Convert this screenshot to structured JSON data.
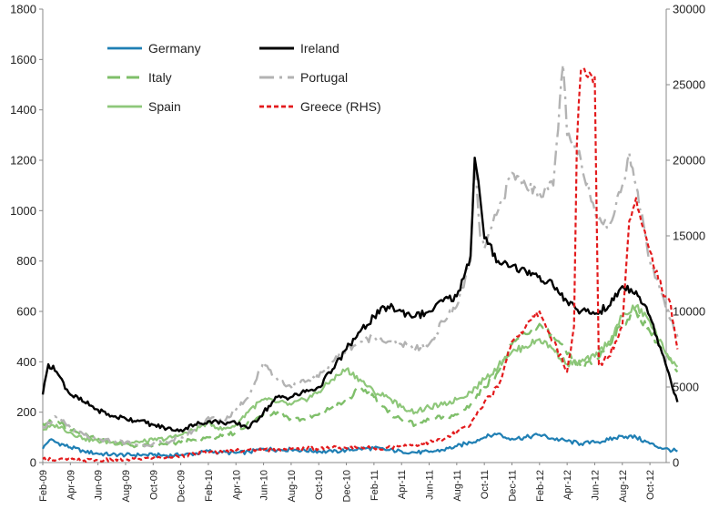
{
  "chart_data": {
    "type": "line",
    "title": "",
    "xlabel": "",
    "ylabel": "",
    "ylim": [
      0,
      1800
    ],
    "y2lim": [
      0,
      30000
    ],
    "y_ticks": [
      "0",
      "200",
      "400",
      "600",
      "800",
      "1000",
      "1200",
      "1400",
      "1600",
      "1800"
    ],
    "y2_ticks": [
      "0",
      "5000",
      "10000",
      "15000",
      "20000",
      "25000",
      "30000"
    ],
    "x_tick_labels": [
      "Feb-09",
      "Apr-09",
      "Jun-09",
      "Aug-09",
      "Oct-09",
      "Dec-09",
      "Feb-10",
      "Apr-10",
      "Jun-10",
      "Aug-10",
      "Oct-10",
      "Dec-10",
      "Feb-11",
      "Apr-11",
      "Jun-11",
      "Aug-11",
      "Oct-11",
      "Dec-11",
      "Feb-12",
      "Apr-12",
      "Jun-12",
      "Aug-12",
      "Oct-12"
    ],
    "x_range_months": [
      0,
      45
    ],
    "grid": false,
    "legend_position": "top-left",
    "series": [
      {
        "name": "Germany",
        "color": "#1f7fb4",
        "dash": "solid",
        "width": 2.2,
        "axis": "left",
        "points": [
          [
            0,
            55
          ],
          [
            0.5,
            90
          ],
          [
            1,
            80
          ],
          [
            2,
            60
          ],
          [
            3,
            45
          ],
          [
            4,
            35
          ],
          [
            5,
            32
          ],
          [
            6,
            30
          ],
          [
            7,
            30
          ],
          [
            8,
            30
          ],
          [
            9,
            28
          ],
          [
            10,
            30
          ],
          [
            11,
            35
          ],
          [
            12,
            45
          ],
          [
            13,
            40
          ],
          [
            14,
            38
          ],
          [
            15,
            42
          ],
          [
            16,
            55
          ],
          [
            17,
            50
          ],
          [
            18,
            52
          ],
          [
            19,
            48
          ],
          [
            20,
            45
          ],
          [
            21,
            42
          ],
          [
            22,
            50
          ],
          [
            23,
            55
          ],
          [
            24,
            57
          ],
          [
            25,
            50
          ],
          [
            26,
            45
          ],
          [
            27,
            40
          ],
          [
            28,
            42
          ],
          [
            29,
            50
          ],
          [
            30,
            65
          ],
          [
            31,
            80
          ],
          [
            32,
            100
          ],
          [
            33,
            115
          ],
          [
            33.5,
            100
          ],
          [
            34,
            95
          ],
          [
            35,
            100
          ],
          [
            36,
            110
          ],
          [
            37,
            95
          ],
          [
            38,
            85
          ],
          [
            39,
            75
          ],
          [
            40,
            80
          ],
          [
            41,
            90
          ],
          [
            42,
            105
          ],
          [
            43,
            100
          ],
          [
            44,
            75
          ],
          [
            45,
            55
          ],
          [
            46,
            45
          ]
        ]
      },
      {
        "name": "Italy",
        "color": "#7fbf6a",
        "dash": "long-dash",
        "width": 2.4,
        "axis": "left",
        "points": [
          [
            0,
            155
          ],
          [
            1,
            165
          ],
          [
            2,
            130
          ],
          [
            3,
            110
          ],
          [
            4,
            95
          ],
          [
            5,
            80
          ],
          [
            6,
            72
          ],
          [
            7,
            65
          ],
          [
            8,
            68
          ],
          [
            9,
            72
          ],
          [
            10,
            80
          ],
          [
            11,
            90
          ],
          [
            12,
            100
          ],
          [
            13,
            105
          ],
          [
            14,
            120
          ],
          [
            15,
            160
          ],
          [
            16,
            190
          ],
          [
            17,
            200
          ],
          [
            18,
            175
          ],
          [
            19,
            170
          ],
          [
            20,
            190
          ],
          [
            21,
            220
          ],
          [
            22,
            240
          ],
          [
            23,
            300
          ],
          [
            24,
            260
          ],
          [
            25,
            200
          ],
          [
            26,
            170
          ],
          [
            27,
            150
          ],
          [
            28,
            170
          ],
          [
            29,
            180
          ],
          [
            30,
            190
          ],
          [
            31,
            230
          ],
          [
            32,
            300
          ],
          [
            33,
            360
          ],
          [
            33.5,
            410
          ],
          [
            34,
            470
          ],
          [
            35,
            510
          ],
          [
            36,
            550
          ],
          [
            37,
            500
          ],
          [
            38,
            430
          ],
          [
            39,
            380
          ],
          [
            40,
            400
          ],
          [
            41,
            470
          ],
          [
            42,
            550
          ],
          [
            43,
            600
          ],
          [
            44,
            520
          ],
          [
            45,
            440
          ],
          [
            46,
            360
          ]
        ]
      },
      {
        "name": "Spain",
        "color": "#8ec77a",
        "dash": "solid",
        "width": 2.2,
        "axis": "left",
        "points": [
          [
            0,
            130
          ],
          [
            1,
            150
          ],
          [
            2,
            120
          ],
          [
            3,
            95
          ],
          [
            4,
            85
          ],
          [
            5,
            80
          ],
          [
            6,
            75
          ],
          [
            7,
            80
          ],
          [
            8,
            90
          ],
          [
            9,
            95
          ],
          [
            10,
            110
          ],
          [
            11,
            130
          ],
          [
            12,
            160
          ],
          [
            13,
            130
          ],
          [
            14,
            150
          ],
          [
            15,
            210
          ],
          [
            16,
            250
          ],
          [
            17,
            240
          ],
          [
            18,
            230
          ],
          [
            19,
            250
          ],
          [
            20,
            280
          ],
          [
            21,
            330
          ],
          [
            22,
            370
          ],
          [
            23,
            330
          ],
          [
            24,
            280
          ],
          [
            25,
            260
          ],
          [
            26,
            220
          ],
          [
            27,
            200
          ],
          [
            28,
            220
          ],
          [
            29,
            230
          ],
          [
            30,
            250
          ],
          [
            31,
            280
          ],
          [
            32,
            330
          ],
          [
            33,
            380
          ],
          [
            33.5,
            420
          ],
          [
            34,
            440
          ],
          [
            35,
            460
          ],
          [
            36,
            490
          ],
          [
            37,
            450
          ],
          [
            38,
            390
          ],
          [
            39,
            400
          ],
          [
            40,
            420
          ],
          [
            41,
            480
          ],
          [
            42,
            580
          ],
          [
            43,
            620
          ],
          [
            44,
            560
          ],
          [
            45,
            450
          ],
          [
            46,
            380
          ]
        ]
      },
      {
        "name": "Ireland",
        "color": "#000000",
        "dash": "solid",
        "width": 2.4,
        "axis": "left",
        "points": [
          [
            0,
            270
          ],
          [
            0.4,
            390
          ],
          [
            1,
            360
          ],
          [
            2,
            270
          ],
          [
            3,
            240
          ],
          [
            4,
            210
          ],
          [
            5,
            185
          ],
          [
            6,
            175
          ],
          [
            7,
            165
          ],
          [
            8,
            150
          ],
          [
            9,
            135
          ],
          [
            10,
            130
          ],
          [
            11,
            150
          ],
          [
            12,
            165
          ],
          [
            13,
            160
          ],
          [
            14,
            155
          ],
          [
            15,
            140
          ],
          [
            16,
            200
          ],
          [
            17,
            260
          ],
          [
            18,
            260
          ],
          [
            19,
            280
          ],
          [
            20,
            300
          ],
          [
            21,
            370
          ],
          [
            22,
            450
          ],
          [
            23,
            520
          ],
          [
            24,
            580
          ],
          [
            25,
            620
          ],
          [
            26,
            600
          ],
          [
            27,
            580
          ],
          [
            28,
            600
          ],
          [
            29,
            640
          ],
          [
            30,
            660
          ],
          [
            31,
            820
          ],
          [
            31.3,
            1210
          ],
          [
            31.7,
            1050
          ],
          [
            32,
            890
          ],
          [
            33,
            800
          ],
          [
            34,
            780
          ],
          [
            35,
            760
          ],
          [
            36,
            740
          ],
          [
            37,
            700
          ],
          [
            38,
            640
          ],
          [
            39,
            600
          ],
          [
            40,
            590
          ],
          [
            41,
            620
          ],
          [
            42,
            700
          ],
          [
            43,
            680
          ],
          [
            44,
            580
          ],
          [
            45,
            420
          ],
          [
            46,
            240
          ]
        ]
      },
      {
        "name": "Portugal",
        "color": "#b3b3b3",
        "dash": "dash-dot",
        "width": 2.4,
        "axis": "left",
        "points": [
          [
            0,
            140
          ],
          [
            1,
            180
          ],
          [
            2,
            140
          ],
          [
            3,
            110
          ],
          [
            4,
            90
          ],
          [
            5,
            85
          ],
          [
            6,
            80
          ],
          [
            7,
            70
          ],
          [
            8,
            75
          ],
          [
            9,
            80
          ],
          [
            10,
            100
          ],
          [
            11,
            130
          ],
          [
            12,
            180
          ],
          [
            13,
            160
          ],
          [
            14,
            210
          ],
          [
            15,
            270
          ],
          [
            16,
            400
          ],
          [
            17,
            330
          ],
          [
            18,
            300
          ],
          [
            19,
            320
          ],
          [
            20,
            340
          ],
          [
            21,
            400
          ],
          [
            22,
            450
          ],
          [
            23,
            480
          ],
          [
            24,
            500
          ],
          [
            25,
            480
          ],
          [
            26,
            470
          ],
          [
            27,
            450
          ],
          [
            28,
            470
          ],
          [
            29,
            560
          ],
          [
            30,
            620
          ],
          [
            31,
            800
          ],
          [
            31.3,
            1210
          ],
          [
            31.7,
            900
          ],
          [
            32,
            850
          ],
          [
            33,
            1000
          ],
          [
            34,
            1150
          ],
          [
            35,
            1100
          ],
          [
            36,
            1070
          ],
          [
            37,
            1100
          ],
          [
            37.7,
            1580
          ],
          [
            38,
            1300
          ],
          [
            39,
            1200
          ],
          [
            40,
            1000
          ],
          [
            41,
            930
          ],
          [
            42,
            1100
          ],
          [
            42.5,
            1230
          ],
          [
            43,
            1100
          ],
          [
            44,
            800
          ],
          [
            45,
            650
          ],
          [
            46,
            500
          ]
        ]
      },
      {
        "name": "Greece (RHS)",
        "color": "#e31a1c",
        "dash": "short-dash",
        "width": 2.2,
        "axis": "right",
        "points": [
          [
            0,
            250
          ],
          [
            1,
            200
          ],
          [
            2,
            180
          ],
          [
            3,
            150
          ],
          [
            4,
            150
          ],
          [
            5,
            170
          ],
          [
            6,
            200
          ],
          [
            7,
            250
          ],
          [
            8,
            300
          ],
          [
            9,
            350
          ],
          [
            10,
            450
          ],
          [
            11,
            550
          ],
          [
            12,
            650
          ],
          [
            13,
            700
          ],
          [
            14,
            800
          ],
          [
            15,
            850
          ],
          [
            16,
            850
          ],
          [
            17,
            850
          ],
          [
            18,
            900
          ],
          [
            19,
            900
          ],
          [
            20,
            950
          ],
          [
            21,
            1000
          ],
          [
            22,
            950
          ],
          [
            23,
            1000
          ],
          [
            24,
            950
          ],
          [
            25,
            1000
          ],
          [
            26,
            1100
          ],
          [
            27,
            1200
          ],
          [
            28,
            1350
          ],
          [
            29,
            1500
          ],
          [
            30,
            2000
          ],
          [
            31,
            2500
          ],
          [
            32,
            4000
          ],
          [
            33,
            5000
          ],
          [
            33.5,
            6500
          ],
          [
            34,
            8000
          ],
          [
            35,
            9000
          ],
          [
            36,
            10000
          ],
          [
            37,
            8000
          ],
          [
            38,
            6000
          ],
          [
            38.5,
            9000
          ],
          [
            38.7,
            21000
          ],
          [
            39,
            26000
          ],
          [
            39.5,
            25500
          ],
          [
            40,
            25500
          ],
          [
            40.3,
            6500
          ],
          [
            41,
            7000
          ],
          [
            42,
            9000
          ],
          [
            42.5,
            16000
          ],
          [
            43,
            17500
          ],
          [
            44,
            14000
          ],
          [
            45,
            11000
          ],
          [
            45.5,
            10500
          ],
          [
            46,
            7500
          ]
        ]
      }
    ]
  }
}
